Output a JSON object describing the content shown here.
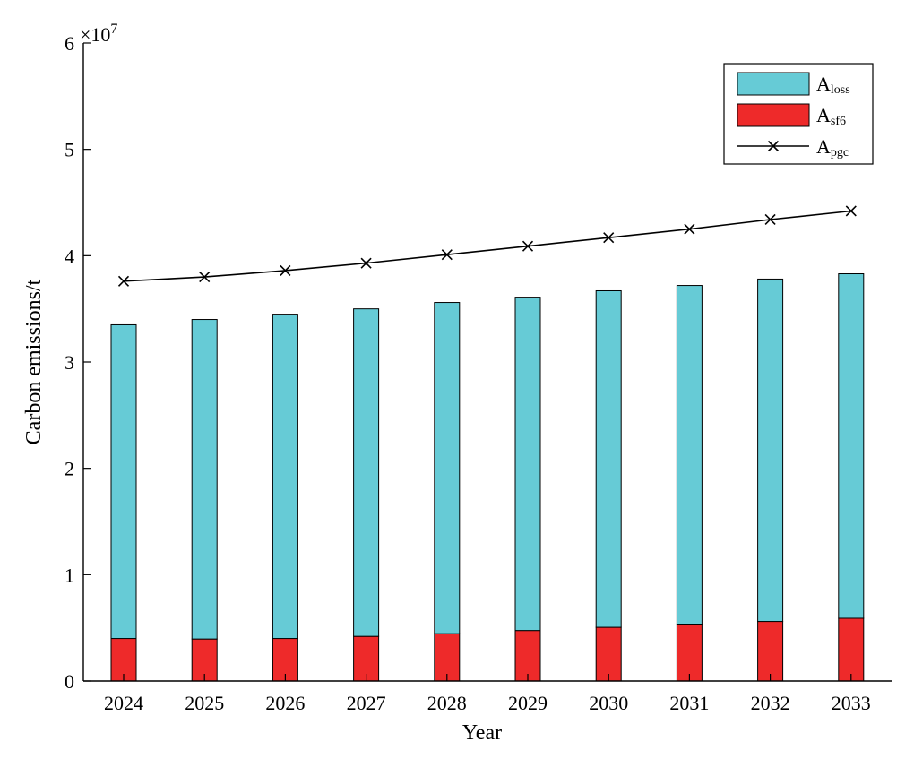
{
  "chart_data": {
    "type": "bar",
    "subtype": "stacked-bar-with-line",
    "categories": [
      "2024",
      "2025",
      "2026",
      "2027",
      "2028",
      "2029",
      "2030",
      "2031",
      "2032",
      "2033"
    ],
    "series": [
      {
        "name": "A_sf6",
        "label_main": "A",
        "label_sub": "sf6",
        "kind": "bar",
        "stack_order": 0,
        "color": "#ee2a2a",
        "values": [
          4000000,
          3950000,
          4000000,
          4200000,
          4450000,
          4750000,
          5050000,
          5350000,
          5600000,
          5900000
        ]
      },
      {
        "name": "A_loss",
        "label_main": "A",
        "label_sub": "loss",
        "kind": "bar",
        "stack_order": 1,
        "color": "#66cbd6",
        "values": [
          29500000,
          30050000,
          30500000,
          30800000,
          31150000,
          31350000,
          31650000,
          31850000,
          32200000,
          32400000
        ]
      },
      {
        "name": "A_pgc",
        "label_main": "A",
        "label_sub": "pgc",
        "kind": "line",
        "marker": "x",
        "color": "#000000",
        "values": [
          37600000,
          38000000,
          38600000,
          39300000,
          40100000,
          40900000,
          41700000,
          42500000,
          43400000,
          44200000
        ]
      }
    ],
    "xlabel": "Year",
    "ylabel": "Carbon emissions/t",
    "ylim": [
      0,
      60000000
    ],
    "yticks": [
      0,
      10000000,
      20000000,
      30000000,
      40000000,
      50000000,
      60000000
    ],
    "ytick_labels": [
      "0",
      "1",
      "2",
      "3",
      "4",
      "5",
      "6"
    ],
    "y_scale_base": "×10",
    "y_scale_exponent": "7",
    "grid": false,
    "legend_position": "top-right"
  }
}
